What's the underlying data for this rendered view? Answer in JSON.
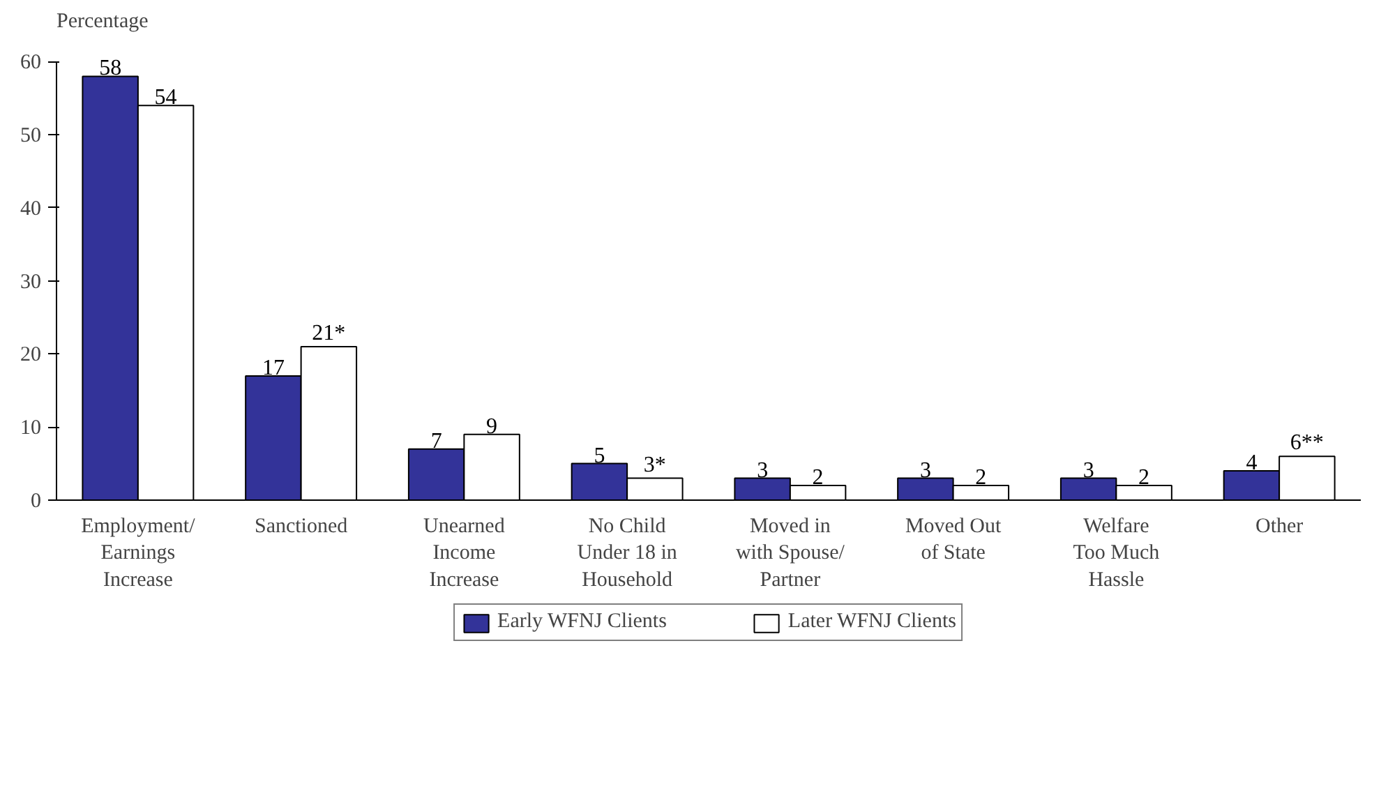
{
  "chart_data": {
    "type": "bar",
    "ylabel": "Percentage",
    "categories": [
      "Employment/\nEarnings\nIncrease",
      "Sanctioned",
      "Unearned\nIncome\nIncrease",
      "No Child\nUnder 18 in\nHousehold",
      "Moved in\nwith Spouse/\nPartner",
      "Moved Out\nof State",
      "Welfare\nToo Much\nHassle",
      "Other"
    ],
    "series": [
      {
        "name": "Early WFNJ Clients",
        "color": "#333399",
        "values": [
          58,
          17,
          7,
          5,
          3,
          3,
          3,
          4
        ],
        "value_labels": [
          "58",
          "17",
          "7",
          "5",
          "3",
          "3",
          "3",
          "4"
        ]
      },
      {
        "name": "Later WFNJ Clients",
        "color": "#ffffff",
        "values": [
          54,
          21,
          9,
          3,
          2,
          2,
          2,
          6
        ],
        "value_labels": [
          "54",
          "21*",
          "9",
          "3*",
          "2",
          "2",
          "2",
          "6**"
        ]
      }
    ],
    "ylim": [
      0,
      60
    ],
    "yticks": [
      0,
      10,
      20,
      30,
      40,
      50,
      60
    ],
    "grid": false,
    "legend": "bottom"
  }
}
